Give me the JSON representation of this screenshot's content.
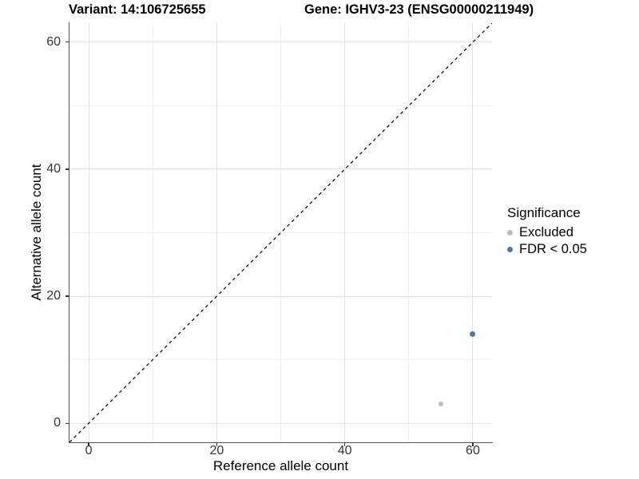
{
  "header": {
    "left_title": "Variant: 14:106725655",
    "right_title": "Gene: IGHV3-23 (ENSG00000211949)"
  },
  "chart_data": {
    "type": "scatter",
    "xlabel": "Reference allele count",
    "ylabel": "Alternative allele count",
    "xlim": [
      -3,
      63
    ],
    "ylim": [
      -3,
      63
    ],
    "x_ticks": [
      0,
      20,
      40,
      60
    ],
    "y_ticks": [
      0,
      20,
      40,
      60
    ],
    "x_minor_gridlines": [
      10,
      30,
      50
    ],
    "y_minor_gridlines": [
      10,
      30,
      50
    ],
    "grid": "on",
    "legend_position": "right",
    "identity_line": {
      "equation": "y = x",
      "style": "dashed",
      "color": "#000000"
    },
    "series": [
      {
        "name": "Excluded",
        "color": "#bdbdbd",
        "marker_px": 6,
        "points": [
          {
            "x": 55,
            "y": 3
          }
        ]
      },
      {
        "name": "FDR < 0.05",
        "color": "#4a7ba6",
        "marker_px": 7,
        "points": [
          {
            "x": 60,
            "y": 14
          }
        ]
      }
    ]
  },
  "legend": {
    "title": "Significance",
    "items": [
      {
        "label": "Excluded",
        "color": "#bdbdbd"
      },
      {
        "label": "FDR < 0.05",
        "color": "#4a7ba6"
      }
    ]
  },
  "colors": {
    "grid_major": "#e4e4e4",
    "grid_minor": "#f1f1f1",
    "axis_line": "#555555",
    "tick_mark": "#333333",
    "tick_text": "#333333",
    "text": "#000000"
  }
}
